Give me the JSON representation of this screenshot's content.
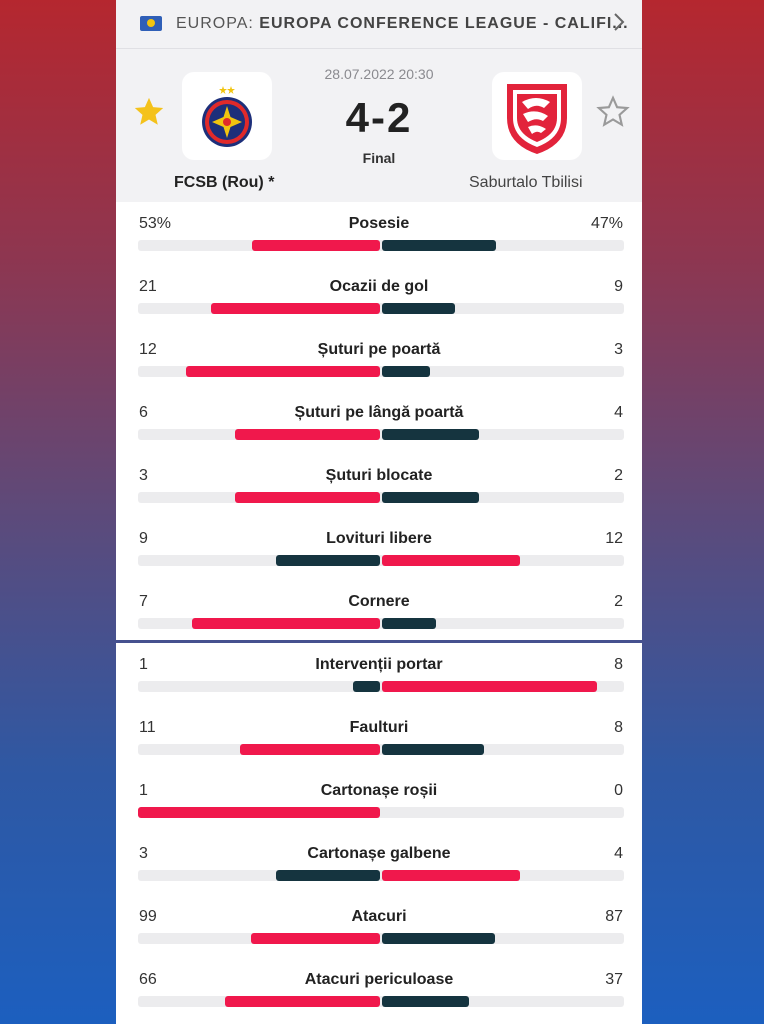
{
  "breadcrumb": {
    "prefix": "EUROPA:",
    "competition": "EUROPA CONFERENCE LEAGUE - CALIFI..."
  },
  "match": {
    "datetime": "28.07.2022 20:30",
    "score": "4-2",
    "status": "Final",
    "home_team": "FCSB (Rou) *",
    "away_team": "Saburtalo Tbilisi",
    "home_favorite": true,
    "away_favorite": false
  },
  "colors": {
    "higher": "#f0184c",
    "lower": "#15343f",
    "star_active": "#f4c21b",
    "star_inactive": "#9a9a9a"
  },
  "stats_top": [
    {
      "label": "Posesie",
      "home": "53%",
      "away": "47%",
      "home_val": 53,
      "away_val": 47
    },
    {
      "label": "Ocazii de gol",
      "home": "21",
      "away": "9",
      "home_val": 21,
      "away_val": 9
    },
    {
      "label": "Șuturi pe poartă",
      "home": "12",
      "away": "3",
      "home_val": 12,
      "away_val": 3
    },
    {
      "label": "Șuturi pe lângă poartă",
      "home": "6",
      "away": "4",
      "home_val": 6,
      "away_val": 4
    },
    {
      "label": "Șuturi blocate",
      "home": "3",
      "away": "2",
      "home_val": 3,
      "away_val": 2
    },
    {
      "label": "Lovituri libere",
      "home": "9",
      "away": "12",
      "home_val": 9,
      "away_val": 12
    },
    {
      "label": "Cornere",
      "home": "7",
      "away": "2",
      "home_val": 7,
      "away_val": 2
    }
  ],
  "stats_bottom": [
    {
      "label": "Intervenții portar",
      "home": "1",
      "away": "8",
      "home_val": 1,
      "away_val": 8
    },
    {
      "label": "Faulturi",
      "home": "11",
      "away": "8",
      "home_val": 11,
      "away_val": 8
    },
    {
      "label": "Cartonașe roșii",
      "home": "1",
      "away": "0",
      "home_val": 1,
      "away_val": 0
    },
    {
      "label": "Cartonașe galbene",
      "home": "3",
      "away": "4",
      "home_val": 3,
      "away_val": 4
    },
    {
      "label": "Atacuri",
      "home": "99",
      "away": "87",
      "home_val": 99,
      "away_val": 87
    },
    {
      "label": "Atacuri periculoase",
      "home": "66",
      "away": "37",
      "home_val": 66,
      "away_val": 37
    }
  ]
}
